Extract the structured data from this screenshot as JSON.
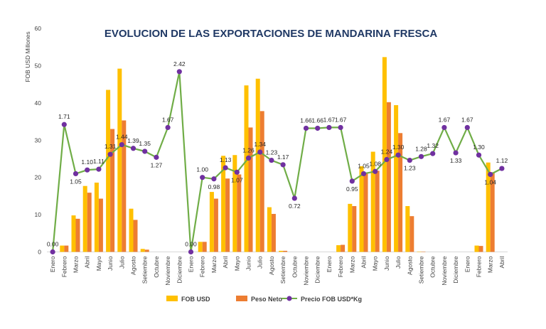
{
  "chart_data": {
    "type": "bar",
    "title": "EVOLUCION DE LAS EXPORTACIONES DE MANDARINA FRESCA",
    "ylabel": "FOB USD Millones",
    "ylim": [
      0,
      60
    ],
    "yticks": [
      0,
      10,
      20,
      30,
      40,
      50,
      60
    ],
    "y2lim": [
      0,
      3
    ],
    "grid": false,
    "legend": "bottom",
    "categories": [
      "Enero",
      "Febrero",
      "Marzo",
      "Abril",
      "Mayo",
      "Junio",
      "Julio",
      "Agosto",
      "Setiembre",
      "Octubre",
      "Noviembre",
      "Diciembre",
      "Enero",
      "Febrero",
      "Marzo",
      "Abril",
      "Mayo",
      "Junio",
      "Julio",
      "Agosto",
      "Setiembre",
      "Octubre",
      "Noviembre",
      "Diciembre",
      "Enero",
      "Febrero",
      "Marzo",
      "Abril",
      "Mayo",
      "Junio",
      "Julio",
      "Agosto",
      "Setiembre",
      "Octubre",
      "Noviembre",
      "Diciembre",
      "Enero",
      "Febrero",
      "Marzo",
      "Abril"
    ],
    "series": [
      {
        "name": "FOB USD",
        "kind": "bar",
        "axis": "left",
        "color": "#FFC000",
        "values": [
          0,
          1.7,
          9.8,
          17.7,
          18.6,
          43.5,
          49.2,
          11.6,
          0.8,
          0,
          0,
          0,
          0,
          2.7,
          16.1,
          25.8,
          26.0,
          44.7,
          46.5,
          12.0,
          0.3,
          0,
          0,
          0,
          0,
          1.8,
          12.9,
          23.0,
          26.9,
          52.3,
          39.4,
          12.3,
          0.1,
          0,
          0,
          0,
          0,
          1.7,
          24.0,
          0
        ]
      },
      {
        "name": "Peso Neto",
        "kind": "bar",
        "axis": "left",
        "color": "#ED7D31",
        "values": [
          0,
          1.7,
          8.9,
          15.9,
          14.3,
          33.0,
          35.3,
          8.6,
          0.6,
          0,
          0,
          0,
          0,
          2.7,
          14.3,
          19.7,
          20.8,
          33.4,
          37.8,
          10.2,
          0.3,
          0,
          0,
          0,
          0,
          1.9,
          12.3,
          21.3,
          21.8,
          40.2,
          31.9,
          9.6,
          0.1,
          0,
          0,
          0,
          0,
          1.6,
          21.4,
          0
        ]
      },
      {
        "name": "Precio FOB USD*Kg",
        "kind": "line",
        "axis": "right",
        "color": "#70AD47",
        "marker_color": "#7030A0",
        "values": [
          0.0,
          1.71,
          1.05,
          1.1,
          1.11,
          1.31,
          1.44,
          1.39,
          1.35,
          1.27,
          1.67,
          2.42,
          0.0,
          1.0,
          0.98,
          1.13,
          1.07,
          1.26,
          1.34,
          1.23,
          1.17,
          0.72,
          1.66,
          1.66,
          1.67,
          1.67,
          0.95,
          1.05,
          1.08,
          1.24,
          1.3,
          1.23,
          1.28,
          1.32,
          1.67,
          1.33,
          1.67,
          1.3,
          1.04,
          1.12
        ]
      }
    ],
    "data_labels": [
      "0.00",
      "1.71",
      "1.05",
      "1.10",
      "1.11",
      "1.31",
      "1.44",
      "1.39",
      "1.35",
      "1.27",
      "1.67",
      "2.42",
      "0.00",
      "1.00",
      "0.98",
      "1.13",
      "1.07",
      "1.26",
      "1.34",
      "1.23",
      "1.17",
      "0.72",
      "1.66",
      "1.66",
      "1.67",
      "1.67",
      "0.95",
      "1.05",
      "1.08",
      "1.24",
      "1.30",
      "1.23",
      "1.28",
      "1.32",
      "1.67",
      "1.33",
      "1.67",
      "1.30",
      "1.04",
      "1.12"
    ]
  }
}
